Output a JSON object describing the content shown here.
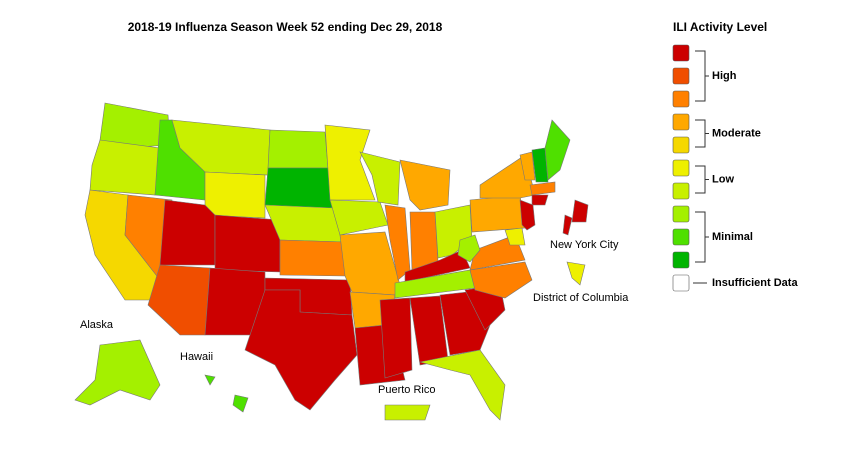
{
  "title": "2018-19 Influenza Season Week 52 ending Dec 29, 2018",
  "legend": {
    "title": "ILI Activity Level",
    "groups": [
      {
        "label": "High",
        "colors": [
          "#cc0000",
          "#f04e00",
          "#ff8000"
        ]
      },
      {
        "label": "Moderate",
        "colors": [
          "#ffa800",
          "#f5d800"
        ]
      },
      {
        "label": "Low",
        "colors": [
          "#eef000",
          "#c8f000"
        ]
      },
      {
        "label": "Minimal",
        "colors": [
          "#a4f000",
          "#4fe000",
          "#00b400"
        ]
      }
    ],
    "insufficient": {
      "label": "Insufficient Data",
      "color": "#ffffff"
    }
  },
  "map_labels": {
    "alaska": "Alaska",
    "hawaii": "Hawaii",
    "puerto_rico": "Puerto Rico",
    "new_york_city": "New York City",
    "district_of_columbia": "District of Columbia"
  }
}
